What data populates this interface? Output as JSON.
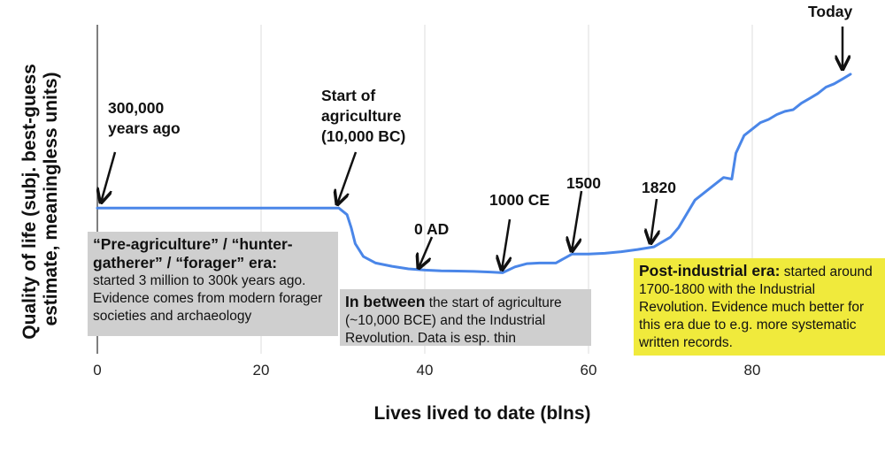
{
  "chart_data": {
    "type": "line",
    "xlabel": "Lives lived to date (blns)",
    "ylabel": [
      "Quality of life (subj. best-guess",
      "estimate, meaningless units)"
    ],
    "xlim": [
      0,
      97
    ],
    "xticks": [
      0,
      20,
      40,
      60,
      80
    ],
    "grid": "vertical",
    "series_color": "#4a86e8",
    "series": [
      {
        "x": [
          0,
          29.5,
          30.5,
          31,
          31.5,
          32.5,
          34,
          36,
          38,
          40,
          42,
          44,
          46,
          48,
          49.5,
          51,
          52.5,
          54,
          56,
          58,
          60,
          62,
          64,
          66,
          68,
          70,
          71,
          73,
          75,
          76.5,
          77.5,
          78,
          79,
          80,
          81,
          82,
          83,
          84,
          85,
          86,
          87,
          88,
          89,
          90,
          91,
          92
        ],
        "y": [
          2.1,
          2.1,
          1.9,
          1.5,
          1.0,
          0.6,
          0.4,
          0.3,
          0.22,
          0.18,
          0.16,
          0.15,
          0.14,
          0.12,
          0.1,
          0.28,
          0.38,
          0.4,
          0.4,
          0.68,
          0.68,
          0.7,
          0.75,
          0.82,
          0.9,
          1.2,
          1.5,
          2.35,
          2.75,
          3.05,
          3.0,
          3.8,
          4.35,
          4.55,
          4.75,
          4.85,
          5.0,
          5.1,
          5.15,
          5.35,
          5.5,
          5.65,
          5.85,
          5.95,
          6.1,
          6.25
        ]
      }
    ],
    "annotations": [
      {
        "lines": [
          "300,000",
          "years ago"
        ]
      },
      {
        "lines": [
          "Start of",
          "agriculture",
          "(10,000 BC)"
        ]
      },
      {
        "lines": [
          "0 AD"
        ]
      },
      {
        "lines": [
          "1000 CE"
        ]
      },
      {
        "lines": [
          "1500"
        ]
      },
      {
        "lines": [
          "1820"
        ]
      },
      {
        "lines": [
          "Today"
        ]
      }
    ],
    "era_boxes": [
      {
        "title": "“Pre-agriculture” / “hunter-gatherer” / “forager” era:",
        "text": "started 3 million to 300k years ago. Evidence comes from modern forager societies and archaeology",
        "color": "#cfcfcf"
      },
      {
        "title": "In between",
        "text": " the start of agriculture (~10,000 BCE) and the Industrial Revolution. Data is esp. thin",
        "color": "#cfcfcf"
      },
      {
        "title": "Post-industrial era:",
        "text": " started around 1700-1800 with the Industrial Revolution. Evidence much better for this era due to e.g. more systematic written records.",
        "color": "#f0ea3c"
      }
    ]
  }
}
